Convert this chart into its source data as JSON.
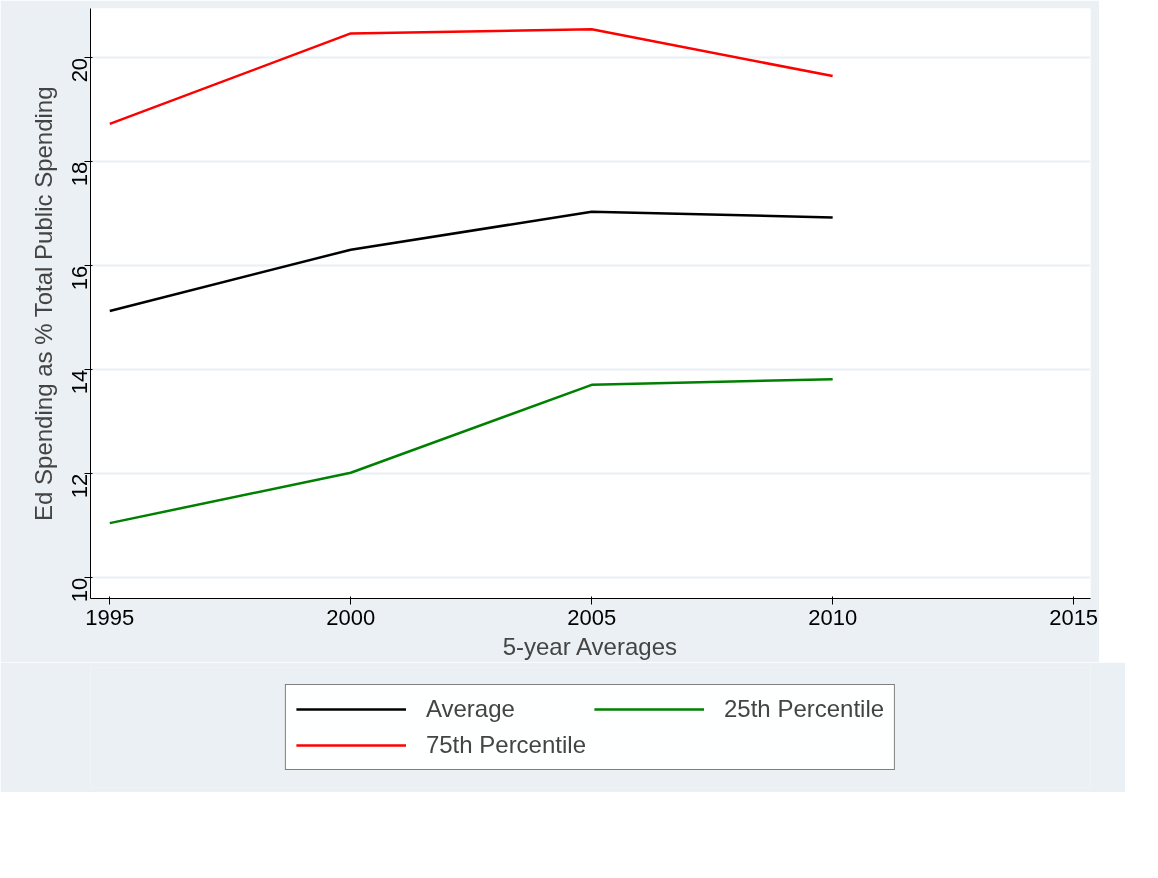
{
  "chart_data": {
    "type": "line",
    "xlabel": "5-year Averages",
    "ylabel": "Ed Spending as % Total Public Spending",
    "x": [
      1995,
      2000,
      2005,
      2010
    ],
    "series": [
      {
        "name": "Average",
        "color": "#000000",
        "values": [
          15.13,
          16.31,
          17.04,
          16.93
        ]
      },
      {
        "name": "75th Percentile",
        "color": "#ff0000",
        "values": [
          18.73,
          20.47,
          20.55,
          19.65
        ]
      },
      {
        "name": "25th Percentile",
        "color": "#008000",
        "values": [
          11.05,
          12.02,
          13.71,
          13.82
        ]
      }
    ],
    "xlim": [
      1994.6,
      2015.35
    ],
    "ylim": [
      9.6,
      20.95
    ],
    "xticks": [
      1995,
      2000,
      2005,
      2010,
      2015
    ],
    "yticks": [
      10,
      12,
      14,
      16,
      18,
      20
    ],
    "grid": "y",
    "legend": "bottom",
    "line_style": "solid"
  }
}
